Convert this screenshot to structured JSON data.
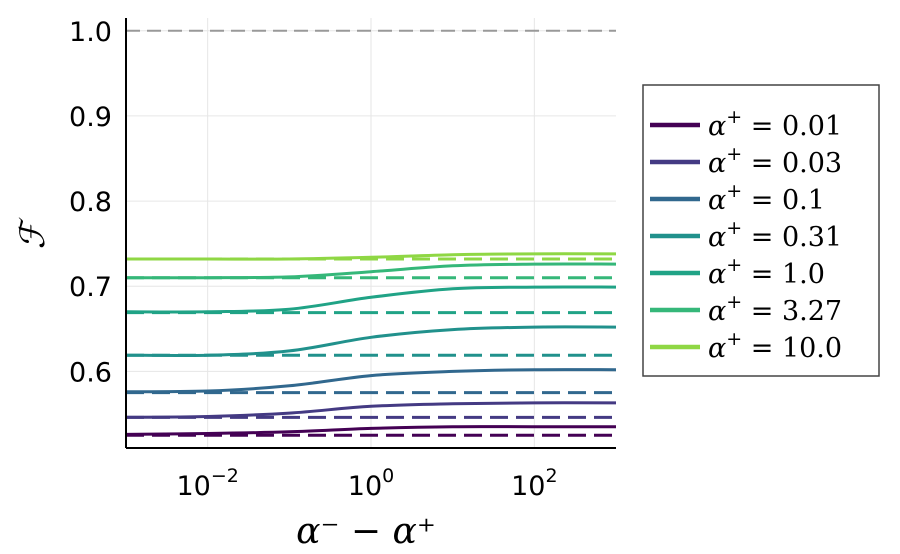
{
  "chart_data": {
    "type": "line",
    "title": "",
    "xlabel": "α⁻ − α⁺",
    "ylabel": "ℱ",
    "xscale": "log",
    "xlim": [
      0.001,
      1000
    ],
    "ylim": [
      0.51,
      1.015
    ],
    "grid": true,
    "legend_position": "right",
    "x_ticks": [
      {
        "value": 0.01,
        "base": "10",
        "exp": "−2"
      },
      {
        "value": 1,
        "base": "10",
        "exp": "0"
      },
      {
        "value": 100,
        "base": "10",
        "exp": "2"
      }
    ],
    "y_ticks": [
      {
        "value": 0.6,
        "label": "0.6"
      },
      {
        "value": 0.7,
        "label": "0.7"
      },
      {
        "value": 0.8,
        "label": "0.8"
      },
      {
        "value": 0.9,
        "label": "0.9"
      },
      {
        "value": 1.0,
        "label": "1.0"
      }
    ],
    "reference_line": {
      "y": 1.0,
      "style": "dashed",
      "color": "#999999"
    },
    "x": [
      0.001,
      0.01,
      0.1,
      1,
      10,
      100,
      1000
    ],
    "series": [
      {
        "name": "α⁺ = 0.01",
        "legend_value": "0.01",
        "color": "#440154",
        "solid": [
          0.526,
          0.527,
          0.529,
          0.533,
          0.535,
          0.535,
          0.535
        ],
        "dashed": 0.525
      },
      {
        "name": "α⁺ = 0.03",
        "legend_value": "0.03",
        "color": "#443a83",
        "solid": [
          0.546,
          0.547,
          0.551,
          0.559,
          0.562,
          0.563,
          0.563
        ],
        "dashed": 0.546
      },
      {
        "name": "α⁺ = 0.1",
        "legend_value": "0.1",
        "color": "#31688e",
        "solid": [
          0.576,
          0.577,
          0.583,
          0.595,
          0.6,
          0.602,
          0.602
        ],
        "dashed": 0.575
      },
      {
        "name": "α⁺ = 0.31",
        "legend_value": "0.31",
        "color": "#21918c",
        "solid": [
          0.619,
          0.619,
          0.624,
          0.64,
          0.649,
          0.652,
          0.652
        ],
        "dashed": 0.619
      },
      {
        "name": "α⁺ = 1.0",
        "legend_value": "1.0",
        "color": "#20a386",
        "solid": [
          0.67,
          0.67,
          0.673,
          0.687,
          0.697,
          0.699,
          0.699
        ],
        "dashed": 0.669
      },
      {
        "name": "α⁺ = 3.27",
        "legend_value": "3.27",
        "color": "#35b779",
        "solid": [
          0.71,
          0.71,
          0.711,
          0.717,
          0.724,
          0.726,
          0.726
        ],
        "dashed": 0.71
      },
      {
        "name": "α⁺ = 10.0",
        "legend_value": "10.0",
        "color": "#8fd744",
        "solid": [
          0.732,
          0.732,
          0.732,
          0.734,
          0.737,
          0.738,
          0.738
        ],
        "dashed": 0.732
      }
    ]
  }
}
